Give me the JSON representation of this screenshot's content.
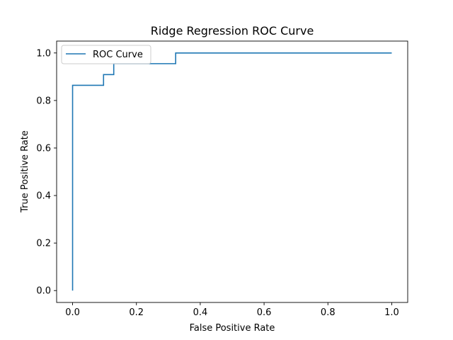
{
  "chart_data": {
    "type": "line",
    "title": "Ridge Regression ROC Curve",
    "xlabel": "False Positive Rate",
    "ylabel": "True Positive Rate",
    "xlim": [
      -0.05,
      1.05
    ],
    "ylim": [
      -0.05,
      1.05
    ],
    "xticks": [
      0.0,
      0.2,
      0.4,
      0.6,
      0.8,
      1.0
    ],
    "xtick_labels": [
      "0.0",
      "0.2",
      "0.4",
      "0.6",
      "0.8",
      "1.0"
    ],
    "yticks": [
      0.0,
      0.2,
      0.4,
      0.6,
      0.8,
      1.0
    ],
    "ytick_labels": [
      "0.0",
      "0.2",
      "0.4",
      "0.6",
      "0.8",
      "1.0"
    ],
    "grid": false,
    "legend": {
      "position": "upper-left"
    },
    "series": [
      {
        "name": "ROC Curve",
        "color": "#1f77b4",
        "x": [
          0.0,
          0.0,
          0.0,
          0.097,
          0.097,
          0.129,
          0.129,
          0.323,
          0.323,
          1.0
        ],
        "y": [
          0.0,
          0.864,
          0.864,
          0.864,
          0.909,
          0.909,
          0.955,
          0.955,
          1.0,
          1.0
        ]
      }
    ]
  }
}
